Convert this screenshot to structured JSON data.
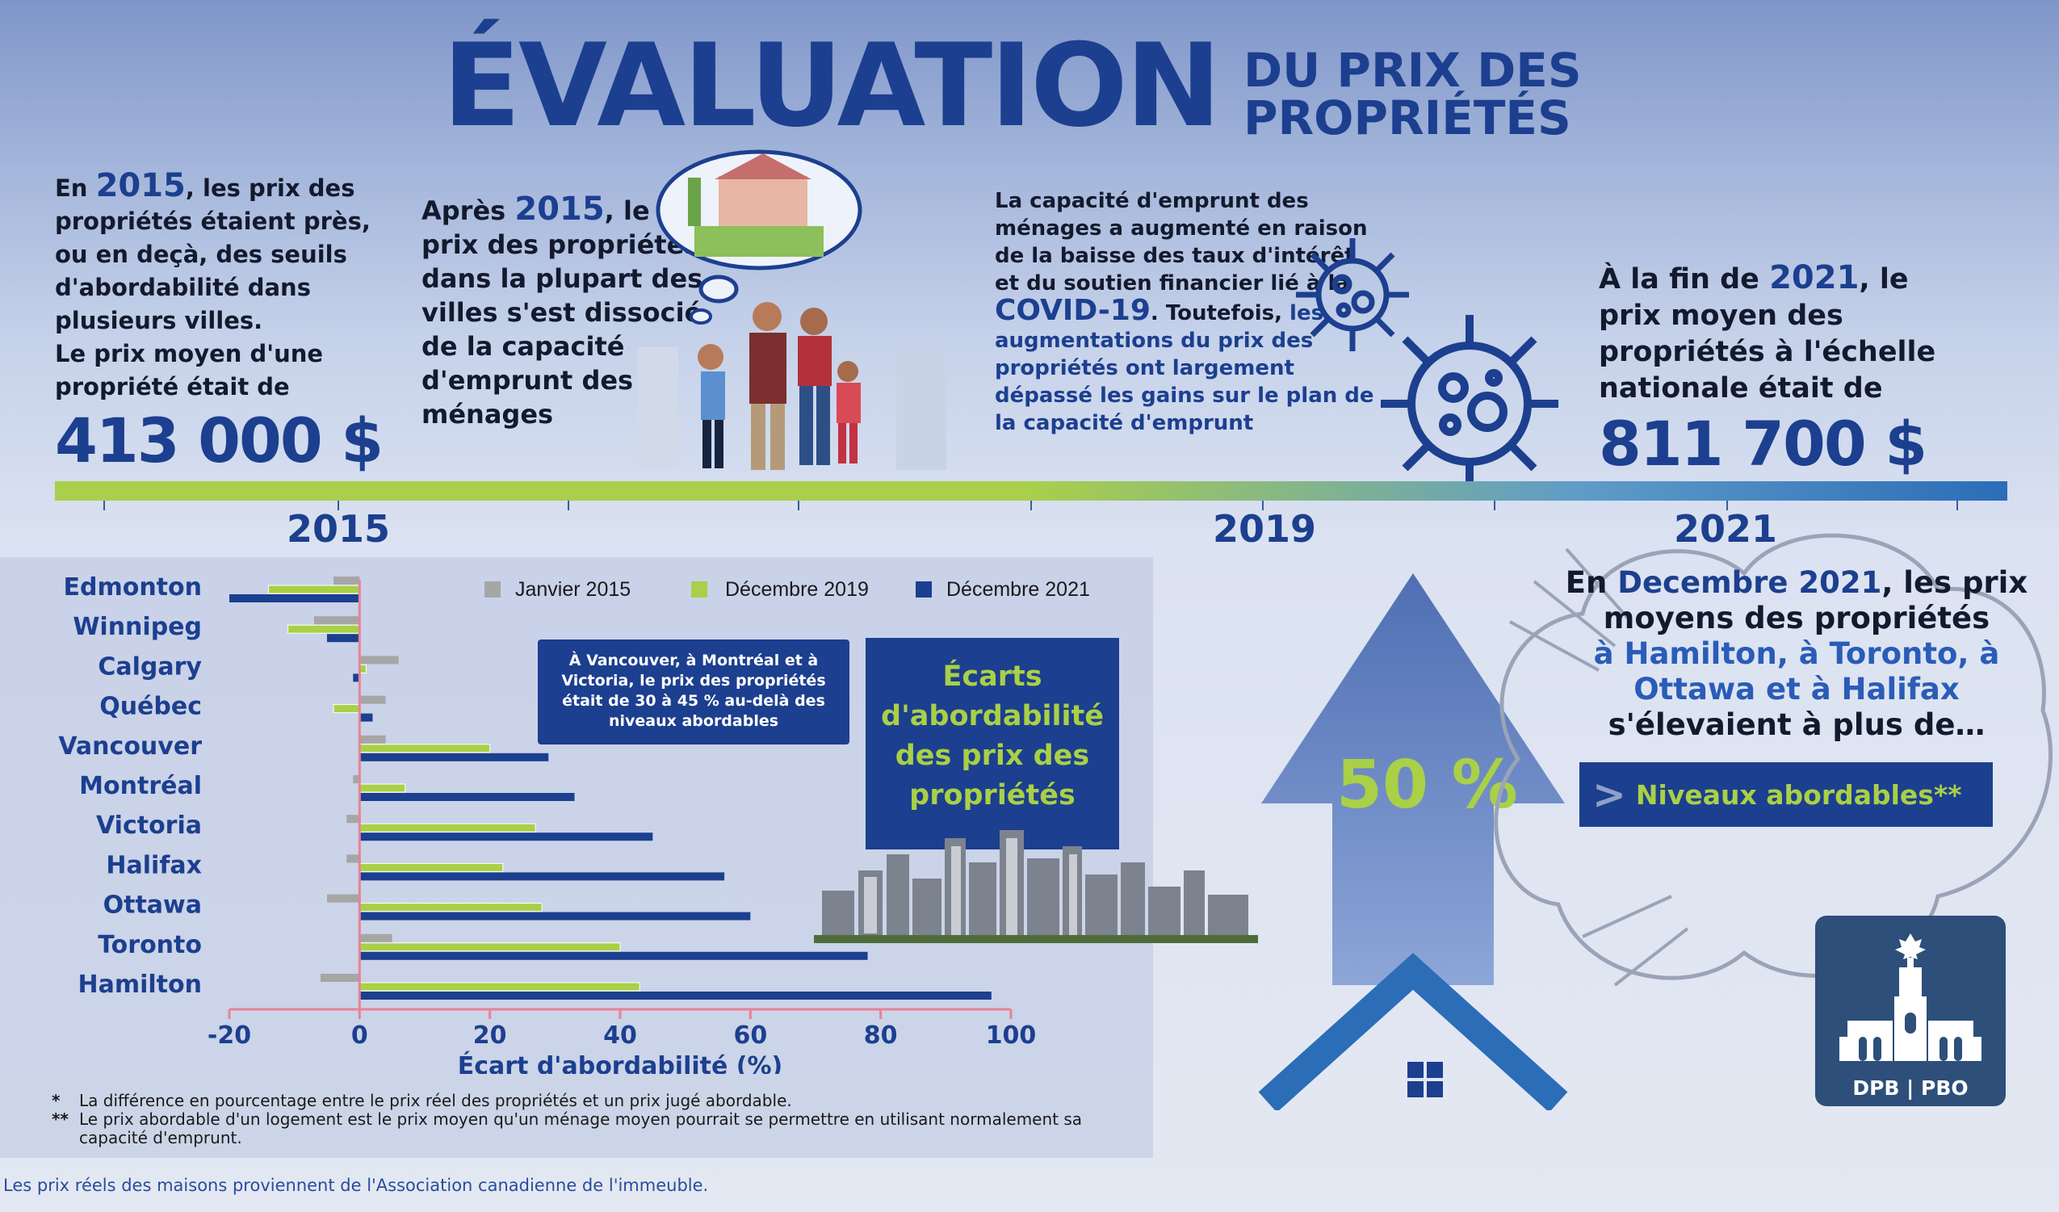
{
  "header": {
    "title_main": "ÉVALUATION",
    "title_sub_line1": "DU PRIX DES",
    "title_sub_line2": "PROPRIÉTÉS"
  },
  "col1": {
    "p1_a": "En ",
    "p1_year": "2015",
    "p1_b": ", les prix des propriétés étaient près, ou en deçà, des seuils d'abordabilité dans plusieurs villes.",
    "p2": "Le prix moyen d'une propriété était de",
    "price": "413 000 $"
  },
  "col2": {
    "a": "Après ",
    "year": "2015",
    "b": ", le prix des propriétés dans la plupart des villes s'est dissocié de la capacité d'emprunt des ménages"
  },
  "col3": {
    "a": "La capacité d'emprunt des ménages a augmenté en raison de la baisse des taux d'intérêt et du soutien financier lié à la ",
    "covid": "COVID-19",
    "b": ". Toutefois, ",
    "hl": "les augmentations du prix des propriétés ont largement dépassé les gains sur le plan de la capacité d'emprunt"
  },
  "col4": {
    "a": "À la fin de ",
    "year": "2021",
    "b": ", le prix moyen des propriétés à l'échelle nationale était de",
    "price": "811 700 $"
  },
  "timeline": {
    "years": [
      "2015",
      "2019",
      "2021"
    ]
  },
  "chart_note": "À Vancouver, à Montréal et à Victoria, le prix des propriétés était de 30 à 45 % au-delà des niveaux abordables",
  "ecarts_box": "Écarts d'abordabilité des prix des propriétés",
  "cloud": {
    "a": "En ",
    "date": "Decembre 2021",
    "b": ", les prix moyens des propriétés",
    "cities": "à Hamilton, à Toronto, à Ottawa et à Halifax",
    "c": "s'élevaient à plus de…"
  },
  "arrow_pct": "50 %",
  "niveaux": {
    "sym": ">",
    "label": "Niveaux abordables**"
  },
  "pbo_label": "DPB | PBO",
  "footnotes": [
    {
      "star": "*",
      "text": "La différence en pourcentage entre le prix réel des propriétés et un prix jugé abordable."
    },
    {
      "star": "**",
      "text": "Le prix abordable d'un logement est le prix moyen qu'un ménage moyen pourrait se permettre en utilisant normalement sa capacité d'emprunt."
    }
  ],
  "source": "Les prix réels des maisons proviennent de l'Association canadienne de l'immeuble.",
  "chart_data": {
    "type": "bar",
    "orientation": "horizontal",
    "categories": [
      "Edmonton",
      "Winnipeg",
      "Calgary",
      "Québec",
      "Vancouver",
      "Montréal",
      "Victoria",
      "Halifax",
      "Ottawa",
      "Toronto",
      "Hamilton"
    ],
    "series": [
      {
        "name": "Janvier 2015",
        "color": "#a6a6a6",
        "values": [
          -4,
          -7,
          6,
          4,
          4,
          -1,
          -2,
          -2,
          -5,
          5,
          -6
        ]
      },
      {
        "name": "Décembre 2019",
        "color": "#a9d046",
        "values": [
          -14,
          -11,
          1,
          -4,
          20,
          7,
          27,
          22,
          28,
          40,
          43
        ]
      },
      {
        "name": "Décembre 2021",
        "color": "#1c3f8f",
        "values": [
          -20,
          -5,
          -1,
          2,
          29,
          33,
          45,
          56,
          60,
          78,
          97
        ]
      }
    ],
    "xlabel": "Écart d'abordabilité (%)",
    "ylabel": "",
    "xlim": [
      -20,
      100
    ],
    "xticks": [
      "-20",
      "0",
      "20",
      "40",
      "60",
      "80",
      "100"
    ],
    "legend_position": "top-right"
  }
}
